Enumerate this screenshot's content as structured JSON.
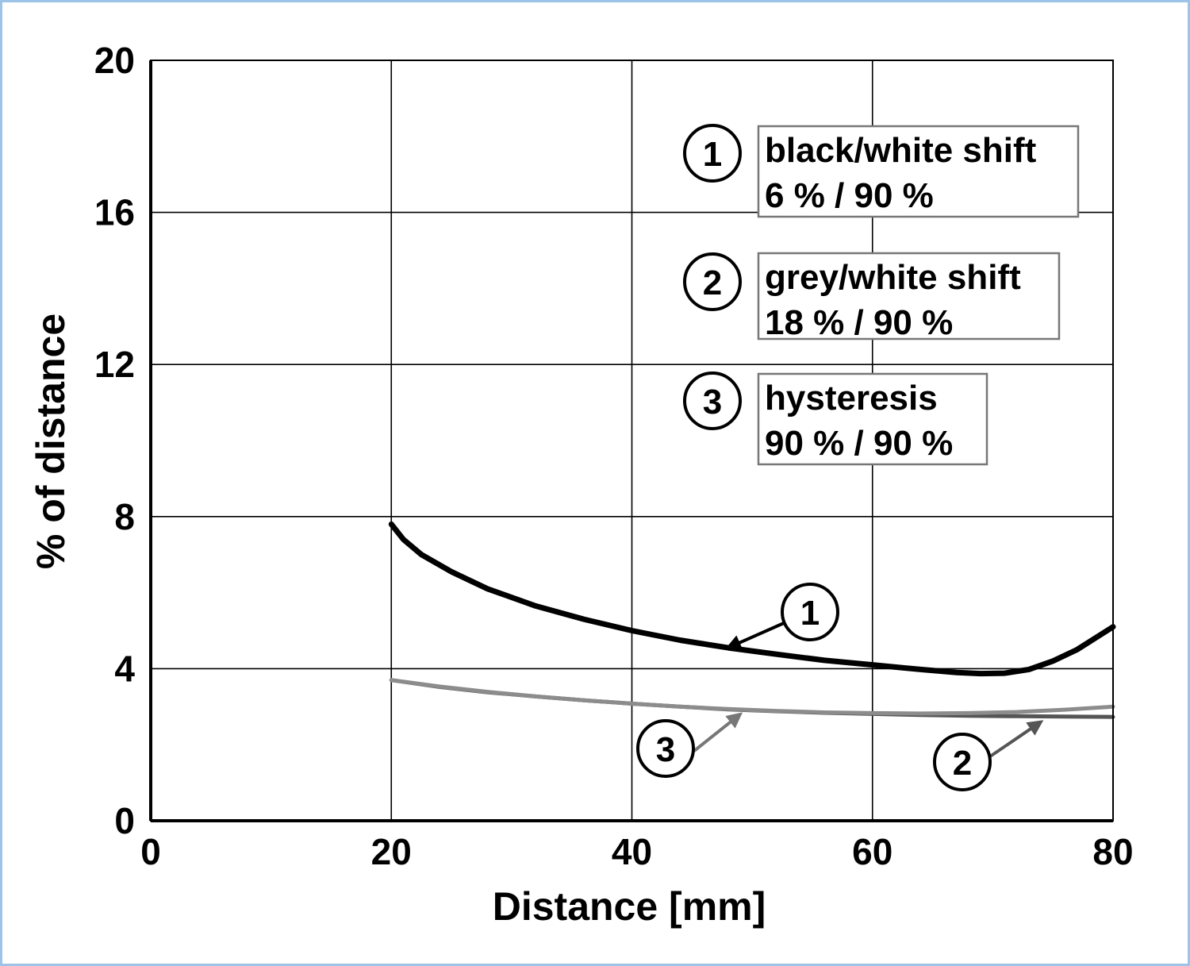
{
  "chart_data": {
    "type": "line",
    "title": "",
    "xlabel": "Distance [mm]",
    "ylabel": "% of distance",
    "xlim": [
      0,
      80
    ],
    "ylim": [
      0,
      20
    ],
    "xticks": [
      0,
      20,
      40,
      60,
      80
    ],
    "yticks": [
      0,
      4,
      8,
      12,
      16,
      20
    ],
    "grid": true,
    "legend_position": "top-right",
    "legend": [
      {
        "marker": "1",
        "line1": "black/white shift",
        "line2": "6 % / 90 %"
      },
      {
        "marker": "2",
        "line1": "grey/white shift",
        "line2": "18 % / 90 %"
      },
      {
        "marker": "3",
        "line1": "hysteresis",
        "line2": "90 % / 90 %"
      }
    ],
    "series": [
      {
        "marker": "1",
        "color": "#000000",
        "x": [
          20,
          21,
          22.5,
          25,
          28,
          32,
          36,
          40,
          44,
          48,
          52,
          56,
          60,
          64,
          67,
          69,
          71,
          73,
          75,
          77,
          79,
          80
        ],
        "y": [
          7.8,
          7.4,
          7.0,
          6.55,
          6.1,
          5.65,
          5.3,
          5.0,
          4.75,
          4.55,
          4.38,
          4.22,
          4.1,
          3.98,
          3.9,
          3.87,
          3.88,
          3.98,
          4.2,
          4.5,
          4.9,
          5.1
        ]
      },
      {
        "marker": "2",
        "color": "#555555",
        "x": [
          20,
          24,
          28,
          32,
          36,
          40,
          44,
          48,
          52,
          56,
          60,
          64,
          68,
          72,
          76,
          80
        ],
        "y": [
          3.7,
          3.52,
          3.38,
          3.27,
          3.17,
          3.08,
          3.0,
          2.93,
          2.88,
          2.84,
          2.81,
          2.78,
          2.76,
          2.75,
          2.74,
          2.73
        ]
      },
      {
        "marker": "3",
        "color": "#8c8c8c",
        "x": [
          20,
          24,
          28,
          32,
          36,
          40,
          44,
          48,
          52,
          56,
          60,
          64,
          68,
          72,
          76,
          80
        ],
        "y": [
          3.7,
          3.53,
          3.39,
          3.27,
          3.17,
          3.08,
          3.0,
          2.94,
          2.89,
          2.85,
          2.83,
          2.82,
          2.83,
          2.86,
          2.92,
          3.0
        ]
      }
    ],
    "annotations": [
      {
        "marker": "1",
        "points_to": [
          48,
          4.55
        ]
      },
      {
        "marker": "2",
        "points_to": [
          74,
          2.6
        ]
      },
      {
        "marker": "3",
        "points_to": [
          49,
          2.8
        ]
      }
    ]
  }
}
